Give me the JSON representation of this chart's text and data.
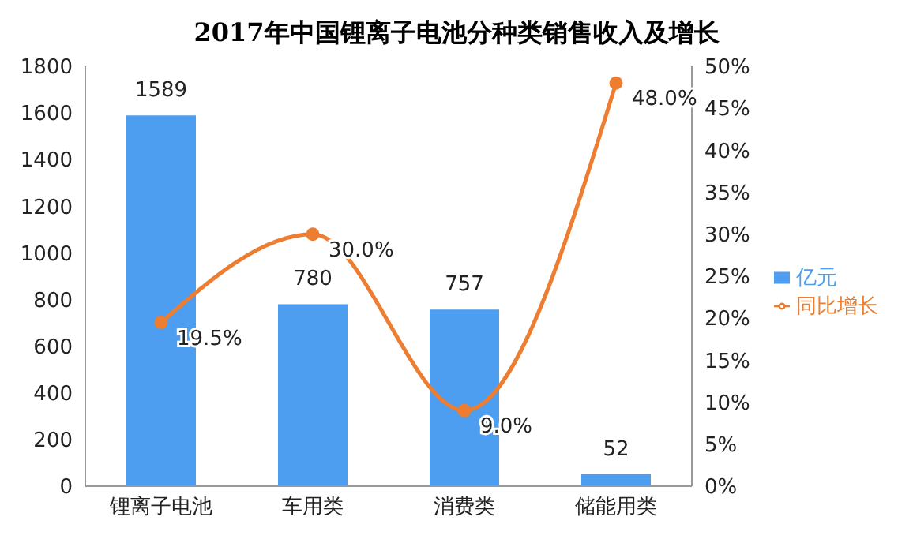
{
  "chart_data": {
    "type": "bar",
    "title": "2017年中国锂离子电池分种类销售收入及增长",
    "categories": [
      "锂离子电池",
      "车用类",
      "消费类",
      "储能用类"
    ],
    "series": [
      {
        "name": "亿元",
        "color": "#4d9ef0",
        "values": [
          1589,
          780,
          757,
          52
        ],
        "value_labels": [
          "1589",
          "780",
          "757",
          "52"
        ]
      },
      {
        "name": "同比增长",
        "type": "line",
        "axis": "y2",
        "color": "#ed7d31",
        "values": [
          19.5,
          30.0,
          9.0,
          48.0
        ],
        "value_labels": [
          "19.5%",
          "30.0%",
          "9.0%",
          "48.0%"
        ]
      }
    ],
    "ylim": [
      0,
      1800
    ],
    "yticks": [
      0,
      200,
      400,
      600,
      800,
      1000,
      1200,
      1400,
      1600,
      1800
    ],
    "y2lim": [
      0,
      50
    ],
    "y2ticks": [
      {
        "value": 0,
        "label": "0%"
      },
      {
        "value": 5,
        "label": "5%"
      },
      {
        "value": 10,
        "label": "10%"
      },
      {
        "value": 15,
        "label": "15%"
      },
      {
        "value": 20,
        "label": "20%"
      },
      {
        "value": 25,
        "label": "25%"
      },
      {
        "value": 30,
        "label": "30%"
      },
      {
        "value": 35,
        "label": "35%"
      },
      {
        "value": 40,
        "label": "40%"
      },
      {
        "value": 45,
        "label": "45%"
      },
      {
        "value": 50,
        "label": "50%"
      }
    ],
    "legend": "right",
    "marker": "circle",
    "grid": false
  }
}
